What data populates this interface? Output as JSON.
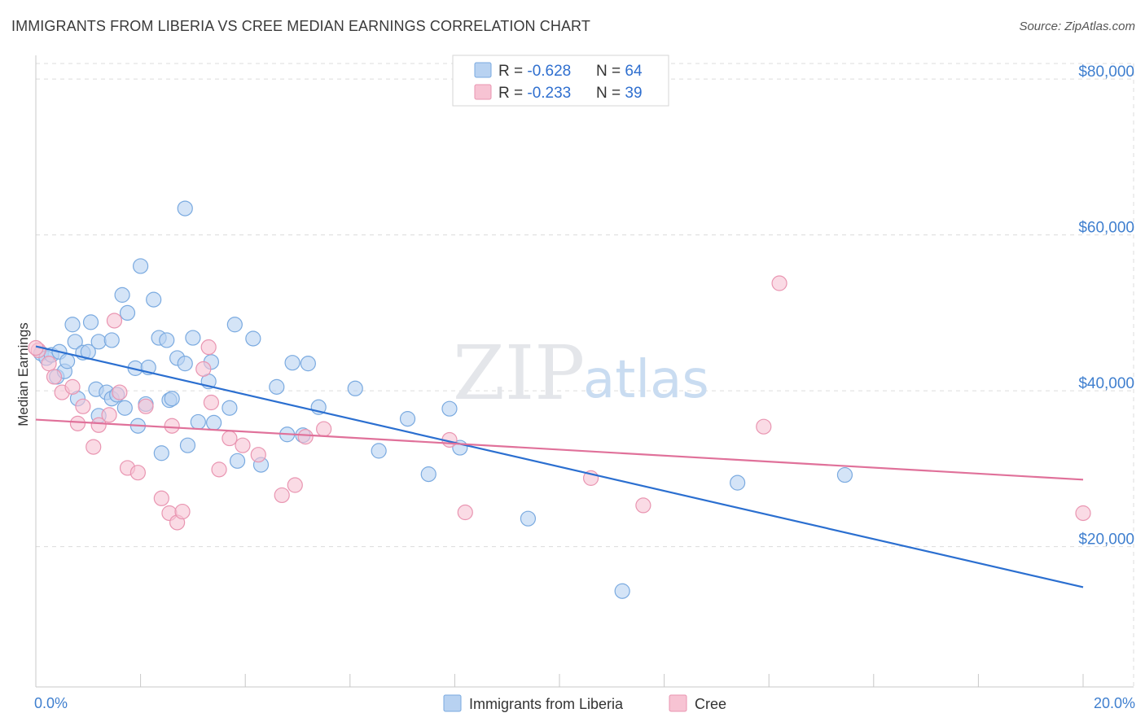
{
  "title": "IMMIGRANTS FROM LIBERIA VS CREE MEDIAN EARNINGS CORRELATION CHART",
  "source": "Source: ZipAtlas.com",
  "watermark": {
    "part1": "ZIP",
    "part2": "atlas"
  },
  "colors": {
    "blue_fill": "#b8d2f1",
    "blue_stroke": "#7aaae0",
    "blue_line": "#2b6fd0",
    "pink_fill": "#f7c3d3",
    "pink_stroke": "#e995b1",
    "pink_line": "#e0719a",
    "tick_text": "#3f7fcf",
    "grid": "#dcdcdc"
  },
  "legend": {
    "rows": [
      {
        "r_label": "R = ",
        "r_value": "-0.628",
        "n_label": "N = ",
        "n_value": "64"
      },
      {
        "r_label": "R = ",
        "r_value": "-0.233",
        "n_label": "N = ",
        "n_value": "39"
      }
    ]
  },
  "chart_data": {
    "type": "scatter",
    "title": "IMMIGRANTS FROM LIBERIA VS CREE MEDIAN EARNINGS CORRELATION CHART",
    "xlabel": "",
    "ylabel": "Median Earnings",
    "xlim": [
      0,
      20
    ],
    "ylim": [
      2000,
      82000
    ],
    "x_ticks": [
      0,
      2,
      4,
      6,
      8,
      10,
      12,
      14,
      16,
      18,
      20
    ],
    "x_tick_labels_shown": {
      "0": "0.0%",
      "20": "20.0%"
    },
    "y_ticks": [
      20000,
      40000,
      60000,
      80000
    ],
    "y_tick_labels": [
      "$20,000",
      "$40,000",
      "$60,000",
      "$80,000"
    ],
    "grid": true,
    "series": [
      {
        "name": "Immigrants from Liberia",
        "color": "blue",
        "trend": {
          "x": [
            0,
            20
          ],
          "y": [
            45700,
            14800
          ]
        },
        "points": [
          [
            0.1,
            44800
          ],
          [
            0.2,
            44200
          ],
          [
            0.3,
            44600
          ],
          [
            0.4,
            41800
          ],
          [
            0.45,
            45000
          ],
          [
            0.55,
            42500
          ],
          [
            0.6,
            43800
          ],
          [
            0.7,
            48500
          ],
          [
            0.75,
            46300
          ],
          [
            0.8,
            39000
          ],
          [
            0.9,
            44900
          ],
          [
            1.0,
            45000
          ],
          [
            1.05,
            48800
          ],
          [
            1.2,
            46300
          ],
          [
            1.15,
            40200
          ],
          [
            1.2,
            36800
          ],
          [
            1.35,
            39800
          ],
          [
            1.45,
            39000
          ],
          [
            1.45,
            46500
          ],
          [
            1.55,
            39500
          ],
          [
            1.65,
            52300
          ],
          [
            1.7,
            37800
          ],
          [
            1.75,
            50000
          ],
          [
            1.9,
            42900
          ],
          [
            1.95,
            35500
          ],
          [
            2.0,
            56000
          ],
          [
            2.1,
            38300
          ],
          [
            2.15,
            43000
          ],
          [
            2.25,
            51700
          ],
          [
            2.35,
            46800
          ],
          [
            2.4,
            32000
          ],
          [
            2.5,
            46500
          ],
          [
            2.55,
            38800
          ],
          [
            2.6,
            39000
          ],
          [
            2.7,
            44200
          ],
          [
            2.85,
            63400
          ],
          [
            2.85,
            43500
          ],
          [
            2.9,
            33000
          ],
          [
            3.0,
            46800
          ],
          [
            3.1,
            36000
          ],
          [
            3.3,
            41200
          ],
          [
            3.35,
            43700
          ],
          [
            3.4,
            35900
          ],
          [
            3.7,
            37800
          ],
          [
            3.8,
            48500
          ],
          [
            3.85,
            31000
          ],
          [
            4.15,
            46700
          ],
          [
            4.3,
            30500
          ],
          [
            4.6,
            40500
          ],
          [
            4.8,
            34400
          ],
          [
            4.9,
            43600
          ],
          [
            5.1,
            34300
          ],
          [
            5.2,
            43500
          ],
          [
            5.4,
            37900
          ],
          [
            6.1,
            40300
          ],
          [
            6.55,
            32300
          ],
          [
            7.1,
            36400
          ],
          [
            7.5,
            29300
          ],
          [
            7.9,
            37700
          ],
          [
            8.1,
            32700
          ],
          [
            9.4,
            23600
          ],
          [
            11.2,
            14300
          ],
          [
            13.4,
            28200
          ],
          [
            15.45,
            29200
          ]
        ]
      },
      {
        "name": "Cree",
        "color": "pink",
        "trend": {
          "x": [
            0,
            20
          ],
          "y": [
            36300,
            28600
          ]
        },
        "points": [
          [
            0.05,
            45200
          ],
          [
            0.25,
            43500
          ],
          [
            0.35,
            41800
          ],
          [
            0.5,
            39800
          ],
          [
            0.7,
            40500
          ],
          [
            0.8,
            35800
          ],
          [
            0.9,
            38000
          ],
          [
            1.1,
            32800
          ],
          [
            1.2,
            35600
          ],
          [
            1.4,
            36900
          ],
          [
            1.5,
            49000
          ],
          [
            1.6,
            39800
          ],
          [
            1.75,
            30100
          ],
          [
            1.95,
            29500
          ],
          [
            2.1,
            38000
          ],
          [
            2.4,
            26200
          ],
          [
            2.55,
            24300
          ],
          [
            2.6,
            35500
          ],
          [
            2.7,
            23100
          ],
          [
            2.8,
            24500
          ],
          [
            3.2,
            42800
          ],
          [
            3.3,
            45600
          ],
          [
            3.35,
            38500
          ],
          [
            3.5,
            29900
          ],
          [
            3.7,
            33900
          ],
          [
            3.95,
            33000
          ],
          [
            4.25,
            31800
          ],
          [
            4.7,
            26600
          ],
          [
            4.95,
            27900
          ],
          [
            5.15,
            34100
          ],
          [
            5.5,
            35100
          ],
          [
            7.9,
            33700
          ],
          [
            8.2,
            24400
          ],
          [
            10.6,
            28800
          ],
          [
            11.6,
            25300
          ],
          [
            13.9,
            35400
          ],
          [
            14.2,
            53800
          ],
          [
            20.0,
            24300
          ],
          [
            0.0,
            45500
          ]
        ]
      }
    ]
  },
  "bottom_legend": {
    "items": [
      {
        "label": "Immigrants from Liberia",
        "color": "blue"
      },
      {
        "label": "Cree",
        "color": "pink"
      }
    ]
  }
}
